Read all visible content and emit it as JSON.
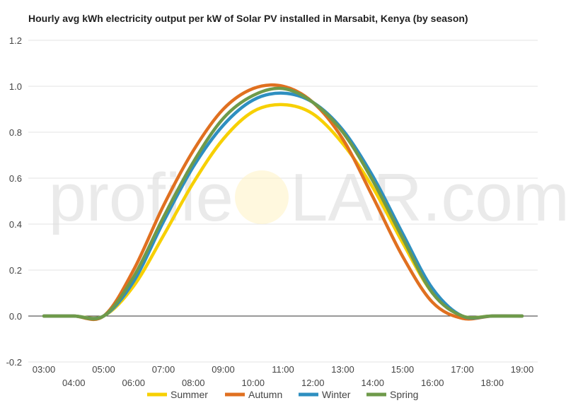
{
  "chart_data": {
    "type": "line",
    "title": "Hourly avg kWh electricity output per kW of Solar PV installed in Marsabit, Kenya (by season)",
    "xlabel": "",
    "ylabel": "",
    "ylim": [
      -0.2,
      1.2
    ],
    "yticks": [
      -0.2,
      0.0,
      0.2,
      0.4,
      0.6,
      0.8,
      1.0,
      1.2
    ],
    "ytick_labels": [
      "-0.2",
      "0.0",
      "0.2",
      "0.4",
      "0.6",
      "0.8",
      "1.0",
      "1.2"
    ],
    "categories": [
      "03:00",
      "04:00",
      "05:00",
      "06:00",
      "07:00",
      "08:00",
      "09:00",
      "10:00",
      "11:00",
      "12:00",
      "13:00",
      "14:00",
      "15:00",
      "16:00",
      "17:00",
      "18:00",
      "19:00"
    ],
    "grid": true,
    "legend_position": "bottom",
    "series": [
      {
        "name": "Summer",
        "color": "#f7d002",
        "values": [
          0,
          0,
          0,
          0.13,
          0.35,
          0.58,
          0.77,
          0.89,
          0.92,
          0.88,
          0.75,
          0.56,
          0.32,
          0.1,
          0,
          0,
          0
        ]
      },
      {
        "name": "Autumn",
        "color": "#e07020",
        "values": [
          0,
          0,
          0,
          0.2,
          0.48,
          0.72,
          0.9,
          0.99,
          1.0,
          0.93,
          0.77,
          0.52,
          0.26,
          0.06,
          -0.01,
          0,
          0
        ]
      },
      {
        "name": "Winter",
        "color": "#2e8fc0",
        "values": [
          0,
          0,
          0,
          0.15,
          0.41,
          0.65,
          0.83,
          0.94,
          0.97,
          0.93,
          0.81,
          0.61,
          0.36,
          0.12,
          0,
          0,
          0
        ]
      },
      {
        "name": "Spring",
        "color": "#6e9a4a",
        "values": [
          0,
          0,
          0,
          0.17,
          0.43,
          0.67,
          0.86,
          0.96,
          0.99,
          0.93,
          0.8,
          0.59,
          0.34,
          0.1,
          0,
          0,
          0
        ]
      }
    ]
  },
  "watermark": {
    "text_left": "profile",
    "text_right": "LAR.com",
    "sun_color": "#fff3c4"
  }
}
